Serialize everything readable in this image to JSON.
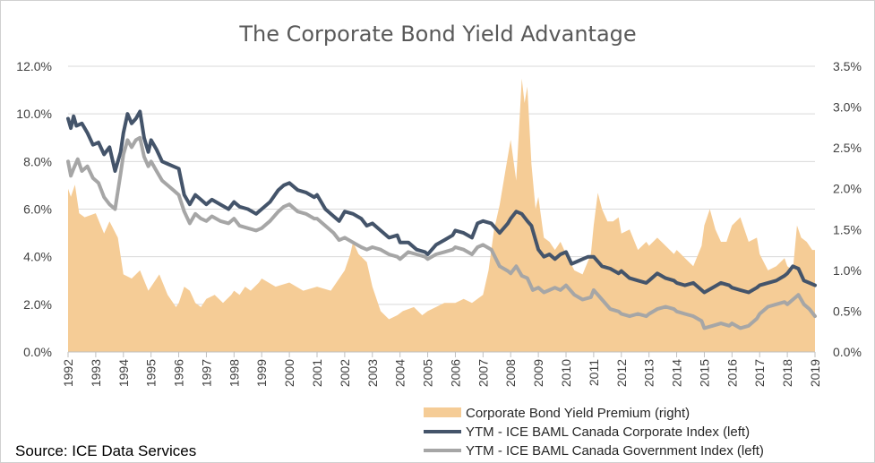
{
  "chart_data": {
    "type": "line",
    "title": "The Corporate Bond Yield Advantage",
    "source": "Source: ICE Data Services",
    "xlabel": "",
    "ylabel": "",
    "x_range": [
      1992.0,
      2019.0
    ],
    "x_ticks": [
      {
        "value": 1992,
        "label": "1992"
      },
      {
        "value": 1993,
        "label": "1993"
      },
      {
        "value": 1994,
        "label": "1994"
      },
      {
        "value": 1995,
        "label": "1995"
      },
      {
        "value": 1996,
        "label": "1996"
      },
      {
        "value": 1997,
        "label": "1997"
      },
      {
        "value": 1998,
        "label": "1998"
      },
      {
        "value": 1999,
        "label": "1999"
      },
      {
        "value": 2000,
        "label": "2000"
      },
      {
        "value": 2001,
        "label": "2001"
      },
      {
        "value": 2002,
        "label": "2002"
      },
      {
        "value": 2003,
        "label": "2003"
      },
      {
        "value": 2004,
        "label": "2004"
      },
      {
        "value": 2005,
        "label": "2005"
      },
      {
        "value": 2006,
        "label": "2006"
      },
      {
        "value": 2007,
        "label": "2007"
      },
      {
        "value": 2008,
        "label": "2008"
      },
      {
        "value": 2009,
        "label": "2009"
      },
      {
        "value": 2010,
        "label": "2010"
      },
      {
        "value": 2011,
        "label": "2011"
      },
      {
        "value": 2012,
        "label": "2012"
      },
      {
        "value": 2013,
        "label": "2013"
      },
      {
        "value": 2014,
        "label": "2014"
      },
      {
        "value": 2015,
        "label": "2015"
      },
      {
        "value": 2016,
        "label": "2016"
      },
      {
        "value": 2017,
        "label": "2017"
      },
      {
        "value": 2018,
        "label": "2018"
      },
      {
        "value": 2019,
        "label": "2019"
      }
    ],
    "y_left": {
      "range": [
        0,
        12
      ],
      "ticks": [
        {
          "value": 0,
          "label": "0.0%"
        },
        {
          "value": 2,
          "label": "2.0%"
        },
        {
          "value": 4,
          "label": "4.0%"
        },
        {
          "value": 6,
          "label": "6.0%"
        },
        {
          "value": 8,
          "label": "8.0%"
        },
        {
          "value": 10,
          "label": "10.0%"
        },
        {
          "value": 12,
          "label": "12.0%"
        }
      ]
    },
    "y_right": {
      "range": [
        0,
        3.5
      ],
      "ticks": [
        {
          "value": 0,
          "label": "0.0%"
        },
        {
          "value": 0.5,
          "label": "0.5%"
        },
        {
          "value": 1,
          "label": "1.0%"
        },
        {
          "value": 1.5,
          "label": "1.5%"
        },
        {
          "value": 2,
          "label": "2.0%"
        },
        {
          "value": 2.5,
          "label": "2.5%"
        },
        {
          "value": 3,
          "label": "3.0%"
        },
        {
          "value": 3.5,
          "label": "3.5%"
        }
      ]
    },
    "grid": "horizontal",
    "legend_position": "bottom-right",
    "series": [
      {
        "name": "Corporate Bond Yield Premium (right)",
        "kind": "area",
        "axis": "right",
        "color": "#F5CC96",
        "x": [
          1992.0,
          1992.1,
          1992.25,
          1992.4,
          1992.6,
          1993.0,
          1993.3,
          1993.5,
          1993.8,
          1994.0,
          1994.3,
          1994.6,
          1994.9,
          1995.0,
          1995.3,
          1995.6,
          1995.9,
          1996.0,
          1996.2,
          1996.4,
          1996.6,
          1996.8,
          1997.0,
          1997.3,
          1997.6,
          1997.9,
          1998.0,
          1998.2,
          1998.4,
          1998.6,
          1998.9,
          1999.0,
          1999.5,
          2000.0,
          2000.5,
          2001.0,
          2001.5,
          2001.8,
          2002.0,
          2002.2,
          2002.3,
          2002.5,
          2002.8,
          2003.0,
          2003.3,
          2003.6,
          2003.9,
          2004.1,
          2004.5,
          2004.8,
          2005.0,
          2005.3,
          2005.6,
          2006.0,
          2006.3,
          2006.6,
          2007.0,
          2007.2,
          2007.4,
          2007.6,
          2007.8,
          2008.0,
          2008.2,
          2008.4,
          2008.5,
          2008.6,
          2008.75,
          2008.9,
          2009.0,
          2009.2,
          2009.4,
          2009.6,
          2009.8,
          2010.0,
          2010.3,
          2010.6,
          2010.9,
          2011.0,
          2011.15,
          2011.3,
          2011.5,
          2011.7,
          2011.9,
          2012.0,
          2012.3,
          2012.6,
          2012.9,
          2013.0,
          2013.3,
          2013.6,
          2013.9,
          2014.0,
          2014.3,
          2014.6,
          2014.9,
          2015.0,
          2015.2,
          2015.4,
          2015.6,
          2015.8,
          2016.0,
          2016.3,
          2016.6,
          2016.9,
          2017.0,
          2017.3,
          2017.6,
          2017.9,
          2018.0,
          2018.2,
          2018.35,
          2018.5,
          2018.7,
          2018.9,
          2019.0
        ],
        "values": [
          2.0,
          1.9,
          2.05,
          1.7,
          1.65,
          1.7,
          1.45,
          1.6,
          1.4,
          0.95,
          0.9,
          1.0,
          0.75,
          0.8,
          0.95,
          0.7,
          0.55,
          0.6,
          0.8,
          0.75,
          0.6,
          0.55,
          0.65,
          0.7,
          0.6,
          0.7,
          0.75,
          0.7,
          0.8,
          0.75,
          0.85,
          0.9,
          0.8,
          0.85,
          0.75,
          0.8,
          0.75,
          0.9,
          1.0,
          1.2,
          1.35,
          1.2,
          1.1,
          0.8,
          0.5,
          0.4,
          0.45,
          0.5,
          0.55,
          0.45,
          0.5,
          0.55,
          0.6,
          0.6,
          0.65,
          0.6,
          0.7,
          1.0,
          1.5,
          1.8,
          2.2,
          2.6,
          2.1,
          3.35,
          3.05,
          3.25,
          2.3,
          1.75,
          1.9,
          1.4,
          1.35,
          1.25,
          1.35,
          1.2,
          1.0,
          0.95,
          1.2,
          1.55,
          1.95,
          1.75,
          1.6,
          1.6,
          1.65,
          1.45,
          1.5,
          1.25,
          1.35,
          1.3,
          1.4,
          1.3,
          1.2,
          1.25,
          1.15,
          1.05,
          1.3,
          1.55,
          1.75,
          1.5,
          1.35,
          1.35,
          1.55,
          1.65,
          1.35,
          1.4,
          1.2,
          1.0,
          1.05,
          1.15,
          1.05,
          1.0,
          1.55,
          1.4,
          1.35,
          1.25,
          1.25
        ]
      },
      {
        "name": "YTM - ICE BAML Canada Corporate Index (left)",
        "kind": "line",
        "axis": "left",
        "color": "#44546A",
        "x": [
          1992.0,
          1992.1,
          1992.2,
          1992.3,
          1992.5,
          1992.7,
          1992.9,
          1993.1,
          1993.3,
          1993.5,
          1993.7,
          1993.9,
          1994.0,
          1994.15,
          1994.3,
          1994.45,
          1994.6,
          1994.75,
          1994.9,
          1995.0,
          1995.2,
          1995.4,
          1995.6,
          1995.8,
          1996.0,
          1996.2,
          1996.4,
          1996.6,
          1996.8,
          1997.0,
          1997.2,
          1997.5,
          1997.8,
          1998.0,
          1998.2,
          1998.5,
          1998.8,
          1999.0,
          1999.3,
          1999.6,
          1999.8,
          2000.0,
          2000.3,
          2000.6,
          2000.9,
          2001.0,
          2001.3,
          2001.6,
          2001.8,
          2002.0,
          2002.3,
          2002.6,
          2002.8,
          2003.0,
          2003.3,
          2003.6,
          2003.9,
          2004.0,
          2004.3,
          2004.6,
          2004.9,
          2005.0,
          2005.3,
          2005.6,
          2005.9,
          2006.0,
          2006.3,
          2006.6,
          2006.8,
          2007.0,
          2007.3,
          2007.6,
          2007.9,
          2008.0,
          2008.2,
          2008.4,
          2008.6,
          2008.75,
          2008.9,
          2009.0,
          2009.2,
          2009.4,
          2009.6,
          2009.8,
          2010.0,
          2010.2,
          2010.4,
          2010.6,
          2010.8,
          2011.0,
          2011.3,
          2011.6,
          2011.9,
          2012.0,
          2012.3,
          2012.6,
          2012.9,
          2013.0,
          2013.3,
          2013.6,
          2013.9,
          2014.0,
          2014.3,
          2014.6,
          2014.9,
          2015.0,
          2015.3,
          2015.6,
          2015.9,
          2016.0,
          2016.3,
          2016.6,
          2016.9,
          2017.0,
          2017.3,
          2017.6,
          2017.9,
          2018.0,
          2018.2,
          2018.4,
          2018.6,
          2018.8,
          2019.0
        ],
        "values": [
          9.8,
          9.4,
          9.9,
          9.5,
          9.6,
          9.2,
          8.7,
          8.8,
          8.3,
          8.6,
          7.6,
          8.4,
          9.2,
          10.0,
          9.6,
          9.8,
          10.1,
          9.0,
          8.4,
          8.9,
          8.5,
          8.0,
          7.9,
          7.8,
          7.7,
          6.6,
          6.2,
          6.6,
          6.4,
          6.2,
          6.4,
          6.2,
          6.0,
          6.3,
          6.1,
          6.0,
          5.8,
          6.0,
          6.3,
          6.8,
          7.0,
          7.1,
          6.8,
          6.7,
          6.5,
          6.6,
          6.0,
          5.7,
          5.5,
          5.9,
          5.8,
          5.6,
          5.3,
          5.4,
          5.1,
          4.8,
          4.9,
          4.6,
          4.6,
          4.3,
          4.2,
          4.1,
          4.5,
          4.7,
          4.9,
          5.1,
          5.0,
          4.8,
          5.4,
          5.5,
          5.4,
          5.0,
          5.4,
          5.6,
          5.9,
          5.8,
          5.5,
          5.3,
          4.7,
          4.3,
          4.0,
          4.1,
          3.9,
          4.1,
          4.2,
          3.7,
          3.8,
          3.9,
          4.0,
          4.0,
          3.6,
          3.5,
          3.3,
          3.4,
          3.1,
          3.0,
          2.9,
          3.0,
          3.3,
          3.1,
          3.0,
          2.9,
          2.8,
          2.9,
          2.6,
          2.5,
          2.7,
          2.9,
          2.8,
          2.7,
          2.6,
          2.5,
          2.7,
          2.8,
          2.9,
          3.0,
          3.2,
          3.3,
          3.6,
          3.5,
          3.0,
          2.9,
          2.8
        ]
      },
      {
        "name": "YTM - ICE BAML Canada Government Index (left)",
        "kind": "line",
        "axis": "left",
        "color": "#A6A6A6",
        "x": [
          1992.0,
          1992.1,
          1992.2,
          1992.35,
          1992.5,
          1992.7,
          1992.9,
          1993.1,
          1993.3,
          1993.5,
          1993.7,
          1993.9,
          1994.0,
          1994.15,
          1994.3,
          1994.45,
          1994.6,
          1994.75,
          1994.9,
          1995.0,
          1995.2,
          1995.4,
          1995.6,
          1995.8,
          1996.0,
          1996.2,
          1996.4,
          1996.6,
          1996.8,
          1997.0,
          1997.2,
          1997.5,
          1997.8,
          1998.0,
          1998.2,
          1998.5,
          1998.8,
          1999.0,
          1999.3,
          1999.6,
          1999.8,
          2000.0,
          2000.3,
          2000.6,
          2000.9,
          2001.0,
          2001.3,
          2001.6,
          2001.8,
          2002.0,
          2002.3,
          2002.6,
          2002.8,
          2003.0,
          2003.3,
          2003.6,
          2003.9,
          2004.0,
          2004.3,
          2004.6,
          2004.9,
          2005.0,
          2005.3,
          2005.6,
          2005.9,
          2006.0,
          2006.3,
          2006.6,
          2006.8,
          2007.0,
          2007.3,
          2007.6,
          2007.9,
          2008.0,
          2008.2,
          2008.4,
          2008.6,
          2008.8,
          2009.0,
          2009.2,
          2009.4,
          2009.6,
          2009.8,
          2010.0,
          2010.3,
          2010.6,
          2010.9,
          2011.0,
          2011.3,
          2011.6,
          2011.9,
          2012.0,
          2012.3,
          2012.6,
          2012.9,
          2013.0,
          2013.3,
          2013.6,
          2013.9,
          2014.0,
          2014.3,
          2014.6,
          2014.9,
          2015.0,
          2015.3,
          2015.6,
          2015.9,
          2016.0,
          2016.3,
          2016.6,
          2016.9,
          2017.0,
          2017.3,
          2017.6,
          2017.9,
          2018.0,
          2018.2,
          2018.4,
          2018.6,
          2018.8,
          2019.0
        ],
        "values": [
          8.0,
          7.4,
          7.7,
          8.1,
          7.6,
          7.8,
          7.3,
          7.1,
          6.5,
          6.2,
          6.0,
          7.5,
          8.3,
          8.9,
          8.6,
          8.9,
          9.0,
          8.2,
          7.8,
          8.0,
          7.6,
          7.2,
          7.0,
          6.8,
          6.6,
          5.9,
          5.4,
          5.8,
          5.6,
          5.5,
          5.7,
          5.5,
          5.4,
          5.6,
          5.3,
          5.2,
          5.1,
          5.2,
          5.5,
          5.9,
          6.1,
          6.2,
          5.9,
          5.8,
          5.6,
          5.6,
          5.3,
          5.0,
          4.7,
          4.8,
          4.6,
          4.4,
          4.3,
          4.4,
          4.3,
          4.1,
          4.0,
          3.9,
          4.2,
          4.1,
          4.0,
          3.9,
          4.1,
          4.2,
          4.3,
          4.4,
          4.3,
          4.1,
          4.4,
          4.5,
          4.3,
          3.6,
          3.4,
          3.3,
          3.6,
          3.2,
          3.1,
          2.6,
          2.7,
          2.5,
          2.6,
          2.7,
          2.6,
          2.8,
          2.4,
          2.2,
          2.3,
          2.6,
          2.2,
          1.8,
          1.7,
          1.6,
          1.5,
          1.6,
          1.5,
          1.6,
          1.8,
          1.9,
          1.8,
          1.7,
          1.6,
          1.5,
          1.3,
          1.0,
          1.1,
          1.2,
          1.1,
          1.2,
          1.0,
          1.1,
          1.4,
          1.6,
          1.9,
          2.0,
          2.1,
          2.0,
          2.2,
          2.4,
          2.0,
          1.8,
          1.5
        ]
      }
    ]
  }
}
